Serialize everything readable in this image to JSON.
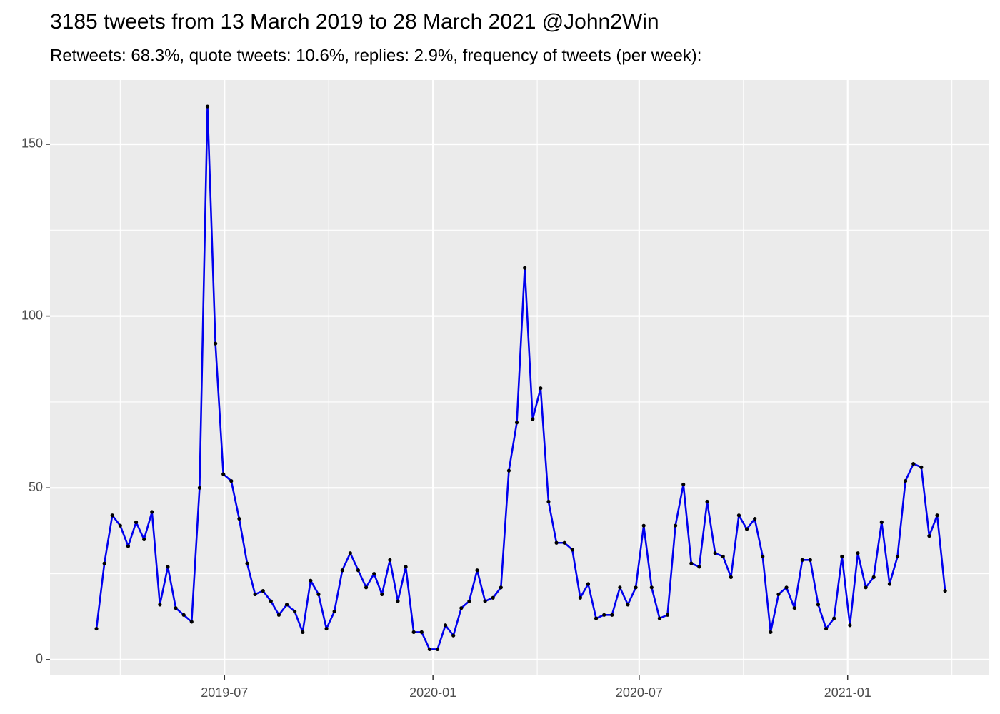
{
  "chart_data": {
    "type": "line",
    "title": "3185 tweets from 13 March 2019 to 28 March 2021 @John2Win",
    "subtitle": "Retweets: 68.3%, quote tweets: 10.6%, replies: 2.9%, frequency of tweets (per week):",
    "x": [
      "2019-03-10",
      "2019-03-17",
      "2019-03-24",
      "2019-03-31",
      "2019-04-07",
      "2019-04-14",
      "2019-04-21",
      "2019-04-28",
      "2019-05-05",
      "2019-05-12",
      "2019-05-19",
      "2019-05-26",
      "2019-06-02",
      "2019-06-09",
      "2019-06-16",
      "2019-06-23",
      "2019-06-30",
      "2019-07-07",
      "2019-07-14",
      "2019-07-21",
      "2019-07-28",
      "2019-08-04",
      "2019-08-11",
      "2019-08-18",
      "2019-08-25",
      "2019-09-01",
      "2019-09-08",
      "2019-09-15",
      "2019-09-22",
      "2019-09-29",
      "2019-10-06",
      "2019-10-13",
      "2019-10-20",
      "2019-10-27",
      "2019-11-03",
      "2019-11-10",
      "2019-11-17",
      "2019-11-24",
      "2019-12-01",
      "2019-12-08",
      "2019-12-15",
      "2019-12-22",
      "2019-12-29",
      "2020-01-05",
      "2020-01-12",
      "2020-01-19",
      "2020-01-26",
      "2020-02-02",
      "2020-02-09",
      "2020-02-16",
      "2020-02-23",
      "2020-03-01",
      "2020-03-08",
      "2020-03-15",
      "2020-03-22",
      "2020-03-29",
      "2020-04-05",
      "2020-04-12",
      "2020-04-19",
      "2020-04-26",
      "2020-05-03",
      "2020-05-10",
      "2020-05-17",
      "2020-05-24",
      "2020-05-31",
      "2020-06-07",
      "2020-06-14",
      "2020-06-21",
      "2020-06-28",
      "2020-07-05",
      "2020-07-12",
      "2020-07-19",
      "2020-07-26",
      "2020-08-02",
      "2020-08-09",
      "2020-08-16",
      "2020-08-23",
      "2020-08-30",
      "2020-09-06",
      "2020-09-13",
      "2020-09-20",
      "2020-09-27",
      "2020-10-04",
      "2020-10-11",
      "2020-10-18",
      "2020-10-25",
      "2020-11-01",
      "2020-11-08",
      "2020-11-15",
      "2020-11-22",
      "2020-11-29",
      "2020-12-06",
      "2020-12-13",
      "2020-12-20",
      "2020-12-27",
      "2021-01-03",
      "2021-01-10",
      "2021-01-17",
      "2021-01-24",
      "2021-01-31",
      "2021-02-07",
      "2021-02-14",
      "2021-02-21",
      "2021-02-28",
      "2021-03-07",
      "2021-03-14",
      "2021-03-21",
      "2021-03-28"
    ],
    "series": [
      {
        "color": "#0000ee",
        "point_color": "#000000",
        "values": [
          9,
          28,
          42,
          39,
          33,
          40,
          35,
          43,
          16,
          27,
          15,
          13,
          11,
          50,
          161,
          92,
          54,
          52,
          41,
          28,
          19,
          20,
          17,
          13,
          16,
          14,
          8,
          23,
          19,
          9,
          14,
          26,
          31,
          26,
          21,
          25,
          19,
          29,
          17,
          27,
          8,
          8,
          3,
          3,
          10,
          7,
          15,
          17,
          26,
          17,
          18,
          21,
          55,
          69,
          114,
          70,
          79,
          46,
          34,
          34,
          32,
          18,
          22,
          12,
          13,
          13,
          21,
          16,
          21,
          39,
          21,
          12,
          13,
          39,
          51,
          28,
          27,
          46,
          31,
          30,
          24,
          42,
          38,
          41,
          30,
          8,
          19,
          21,
          15,
          29,
          29,
          16,
          9,
          12,
          30,
          10,
          31,
          21,
          24,
          40,
          22,
          30,
          52,
          57,
          56,
          36,
          42,
          20
        ]
      }
    ],
    "xlim": [
      "2019-01-28",
      "2021-05-06"
    ],
    "xticks": [
      {
        "value": "2019-07-01",
        "label": "2019-07"
      },
      {
        "value": "2020-01-01",
        "label": "2020-01"
      },
      {
        "value": "2020-07-01",
        "label": "2020-07"
      },
      {
        "value": "2021-01-01",
        "label": "2021-01"
      }
    ],
    "ylim": [
      -4.6,
      168.7
    ],
    "yticks": [
      0,
      50,
      100,
      150
    ],
    "grid": true
  }
}
